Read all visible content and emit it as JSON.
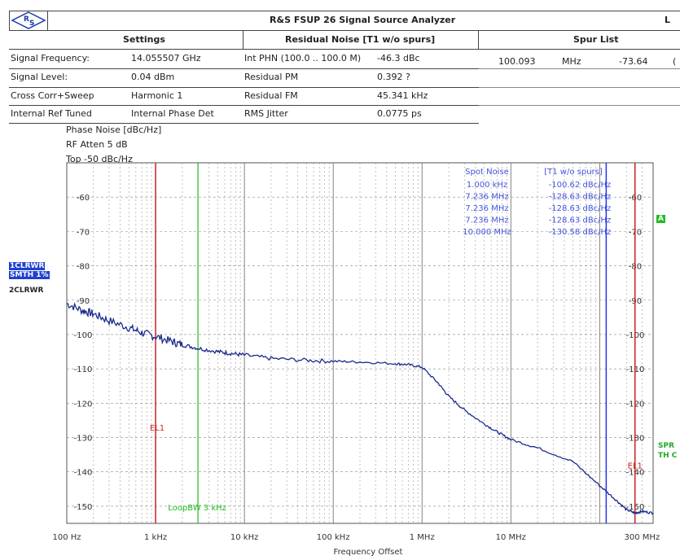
{
  "header": {
    "title": "R&S FSUP 26 Signal Source Analyzer",
    "corner": "L",
    "sections": {
      "settings": "Settings",
      "residual": "Residual Noise [T1 w/o spurs]",
      "spurs": "Spur List"
    }
  },
  "settings": [
    {
      "label": "Signal Frequency:",
      "value": "14.055507 GHz"
    },
    {
      "label": "Signal Level:",
      "value": "0.04 dBm"
    },
    {
      "label": "Cross Corr+Sweep",
      "value": "Harmonic 1"
    },
    {
      "label": "Internal Ref Tuned",
      "value": "Internal Phase Det"
    }
  ],
  "residual": [
    {
      "label": "Int PHN (100.0  .. 100.0 M)",
      "value": "-46.3 dBc"
    },
    {
      "label": "Residual PM",
      "value": "0.392 ?"
    },
    {
      "label": "Residual FM",
      "value": "45.341 kHz"
    },
    {
      "label": "RMS Jitter",
      "value": "0.0775 ps"
    }
  ],
  "spur": {
    "freq": "100.093",
    "unit": "MHz",
    "level": "-73.64",
    "extra": "("
  },
  "params": {
    "line1": "Phase Noise [dBc/Hz]",
    "line2": "RF Atten      5 dB",
    "line3": "Top  -50 dBc/Hz"
  },
  "traces": {
    "t1a": "1CLRWR",
    "t1b": "SMTH 1%",
    "t2": "2CLRWR"
  },
  "right_marks": {
    "a": "A",
    "spr": "SPR",
    "thc": "TH C"
  },
  "spot": {
    "col1_header": "Spot Noise",
    "col2_header": "[T1 w/o spurs]",
    "rows": [
      {
        "f": "1.000 kHz",
        "v": "-100.62 dBc/Hz"
      },
      {
        "f": "7.236 MHz",
        "v": "-128.63 dBc/Hz"
      },
      {
        "f": "7.236 MHz",
        "v": "-128.63 dBc/Hz"
      },
      {
        "f": "7.236 MHz",
        "v": "-128.63 dBc/Hz"
      },
      {
        "f": "10.000 MHz",
        "v": "-130.58 dBc/Hz"
      }
    ]
  },
  "colors": {
    "trace": "#1a2a8c",
    "el1": "#cc2222",
    "loopbw": "#22bb22",
    "spot": "#4455dd",
    "spur_line": "#2233ee"
  },
  "chart_data": {
    "type": "line",
    "xlabel": "Frequency Offset",
    "ylabel": "Phase Noise [dBc/Hz]",
    "x_scale": "log",
    "xlim": [
      100,
      400000000
    ],
    "ylim": [
      -155,
      -50
    ],
    "x_tick_values": [
      100,
      1000,
      10000,
      100000,
      1000000,
      10000000,
      300000000
    ],
    "x_tick_labels": [
      "100 Hz",
      "1 kHz",
      "10 kHz",
      "100 kHz",
      "1 MHz",
      "10 MHz",
      "300 MHz"
    ],
    "y_ticks": [
      -60,
      -70,
      -80,
      -90,
      -100,
      -110,
      -120,
      -130,
      -140,
      -150
    ],
    "grid": true,
    "markers": [
      {
        "label": "EL1",
        "x": 1000,
        "color": "#cc2222"
      },
      {
        "label": "LoopBW 3 kHz",
        "x": 3000,
        "color": "#22bb22"
      },
      {
        "label": "EL1",
        "x": 250000000,
        "color": "#cc2222"
      }
    ],
    "spur_marker_x": 100093000,
    "series": [
      {
        "x": [
          100,
          150,
          200,
          300,
          500,
          700,
          1000,
          1500,
          2000,
          3000,
          5000,
          7000,
          10000,
          20000,
          50000,
          100000,
          200000,
          500000,
          700000,
          1000000,
          1500000,
          2000000,
          3000000,
          5000000,
          7236000,
          10000000,
          20000000,
          50000000,
          100000000,
          150000000,
          200000000,
          250000000,
          300000000,
          400000000
        ],
        "y": [
          -91,
          -93,
          -94,
          -96,
          -98,
          -99.5,
          -100.6,
          -102,
          -103,
          -104,
          -105,
          -105.5,
          -106,
          -107,
          -107.5,
          -107.8,
          -108,
          -108.5,
          -108.8,
          -109.5,
          -114,
          -118,
          -122,
          -126,
          -128.6,
          -130.6,
          -133,
          -137,
          -144,
          -148,
          -151,
          -152,
          -151.5,
          -152
        ]
      }
    ]
  }
}
